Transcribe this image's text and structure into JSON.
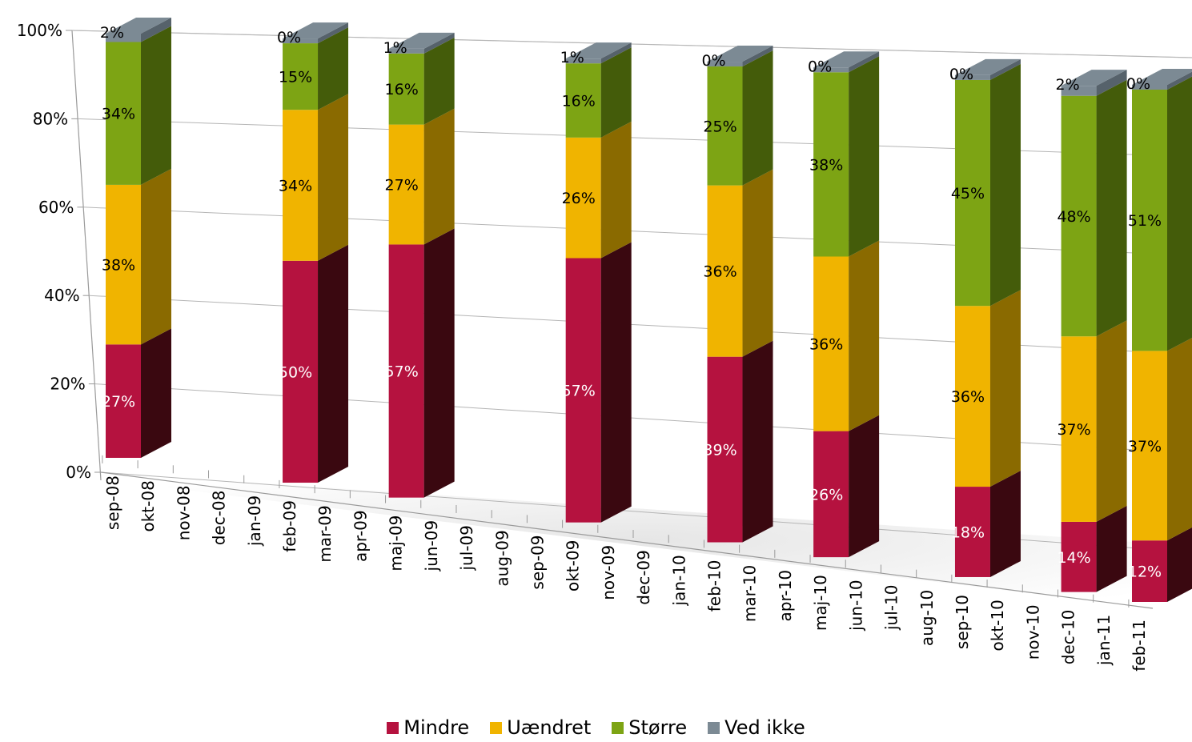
{
  "chart_data": {
    "type": "bar",
    "stacked": true,
    "percent": true,
    "three_d": true,
    "categories": [
      "sep-08",
      "okt-08",
      "nov-08",
      "dec-08",
      "jan-09",
      "feb-09",
      "mar-09",
      "apr-09",
      "maj-09",
      "jun-09",
      "jul-09",
      "aug-09",
      "sep-09",
      "okt-09",
      "nov-09",
      "dec-09",
      "jan-10",
      "feb-10",
      "mar-10",
      "apr-10",
      "maj-10",
      "jun-10",
      "jul-10",
      "aug-10",
      "sep-10",
      "okt-10",
      "nov-10",
      "dec-10",
      "jan-11",
      "feb-11"
    ],
    "y_ticks": [
      "0%",
      "20%",
      "40%",
      "60%",
      "80%",
      "100%"
    ],
    "ylim": [
      0,
      100
    ],
    "bars": [
      {
        "category": "sep-08",
        "values": [
          27,
          38,
          34,
          2
        ]
      },
      {
        "category": "feb-09",
        "values": [
          50,
          34,
          15,
          0
        ]
      },
      {
        "category": "maj-09",
        "values": [
          57,
          27,
          16,
          1
        ]
      },
      {
        "category": "okt-09",
        "values": [
          57,
          26,
          16,
          1
        ]
      },
      {
        "category": "feb-10",
        "values": [
          39,
          36,
          25,
          0
        ]
      },
      {
        "category": "maj-10",
        "values": [
          26,
          36,
          38,
          0
        ]
      },
      {
        "category": "sep-10",
        "values": [
          18,
          36,
          45,
          0
        ]
      },
      {
        "category": "dec-10",
        "values": [
          14,
          37,
          48,
          2
        ]
      },
      {
        "category": "feb-11",
        "values": [
          12,
          37,
          51,
          0
        ]
      }
    ],
    "series": [
      {
        "name": "Mindre",
        "color": "#b5123f",
        "dark": "#3a0810",
        "label_color": "#ffffff"
      },
      {
        "name": "Uændret",
        "color": "#f0b400",
        "dark": "#8a6a00",
        "label_color": "#000000"
      },
      {
        "name": "Større",
        "color": "#7da414",
        "dark": "#445c0a",
        "label_color": "#000000"
      },
      {
        "name": "Ved ikke",
        "color": "#7c8a94",
        "dark": "#56626b",
        "label_color": "#000000"
      }
    ],
    "legend": "bottom",
    "grid": true
  }
}
